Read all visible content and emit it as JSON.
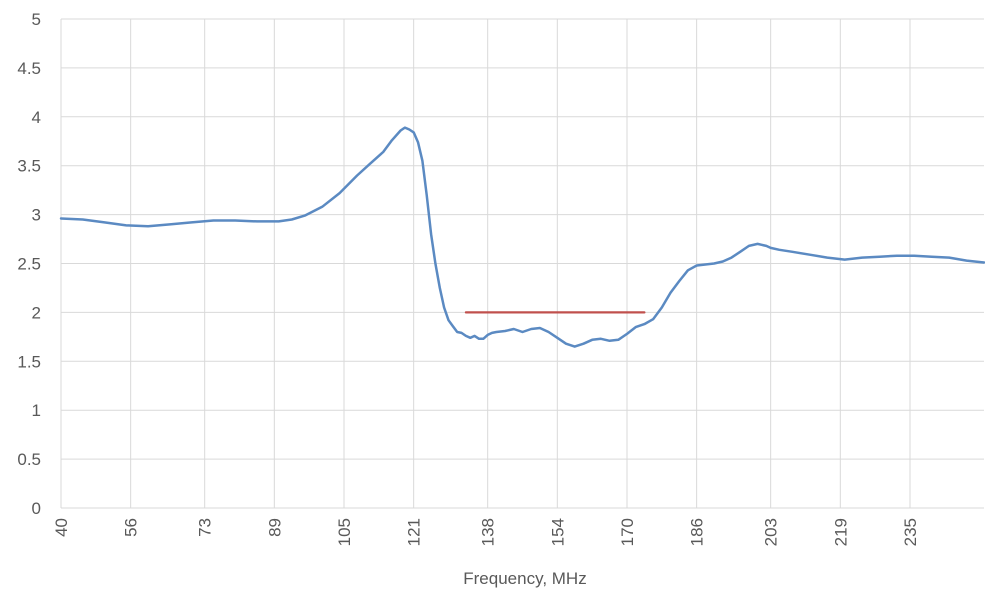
{
  "chart_data": {
    "type": "line",
    "xlabel": "Frequency, MHz",
    "ylabel": "",
    "xlim": [
      40,
      252
    ],
    "ylim": [
      0,
      5
    ],
    "grid": true,
    "y_ticks": [
      "0",
      "0.5",
      "1",
      "1.5",
      "2",
      "2.5",
      "3",
      "3.5",
      "4",
      "4.5",
      "5"
    ],
    "x_ticks": [
      {
        "v": 40,
        "label": "40"
      },
      {
        "v": 56,
        "label": "56"
      },
      {
        "v": 73,
        "label": "73"
      },
      {
        "v": 89,
        "label": "89"
      },
      {
        "v": 105,
        "label": "105"
      },
      {
        "v": 121,
        "label": "121"
      },
      {
        "v": 138,
        "label": "138"
      },
      {
        "v": 154,
        "label": "154"
      },
      {
        "v": 170,
        "label": "170"
      },
      {
        "v": 186,
        "label": "186"
      },
      {
        "v": 203,
        "label": "203"
      },
      {
        "v": 219,
        "label": "219"
      },
      {
        "v": 235,
        "label": "235"
      }
    ],
    "series": [
      {
        "color": "#5b8ac2",
        "x": [
          40,
          45,
          50,
          55,
          60,
          65,
          70,
          75,
          80,
          85,
          90,
          93,
          96,
          100,
          104,
          108,
          111,
          114,
          116,
          118,
          119,
          120,
          121,
          122,
          123,
          124,
          125,
          126,
          127,
          128,
          129,
          130,
          131,
          132,
          133,
          134,
          135,
          136,
          137,
          138,
          139,
          140,
          142,
          144,
          146,
          148,
          150,
          152,
          154,
          156,
          158,
          160,
          162,
          164,
          166,
          168,
          170,
          172,
          174,
          176,
          178,
          180,
          182,
          184,
          186,
          188,
          190,
          192,
          194,
          196,
          198,
          200,
          202,
          203,
          205,
          208,
          212,
          216,
          220,
          224,
          228,
          232,
          236,
          240,
          244,
          248,
          252
        ],
        "y": [
          2.96,
          2.95,
          2.92,
          2.89,
          2.88,
          2.9,
          2.92,
          2.94,
          2.94,
          2.93,
          2.93,
          2.95,
          2.99,
          3.08,
          3.22,
          3.4,
          3.52,
          3.64,
          3.76,
          3.86,
          3.89,
          3.87,
          3.84,
          3.74,
          3.55,
          3.2,
          2.8,
          2.5,
          2.25,
          2.05,
          1.92,
          1.86,
          1.8,
          1.79,
          1.76,
          1.74,
          1.76,
          1.73,
          1.73,
          1.77,
          1.79,
          1.8,
          1.81,
          1.83,
          1.8,
          1.83,
          1.84,
          1.8,
          1.74,
          1.68,
          1.65,
          1.68,
          1.72,
          1.73,
          1.71,
          1.72,
          1.78,
          1.85,
          1.88,
          1.93,
          2.05,
          2.2,
          2.32,
          2.43,
          2.48,
          2.49,
          2.5,
          2.52,
          2.56,
          2.62,
          2.68,
          2.7,
          2.68,
          2.66,
          2.64,
          2.62,
          2.59,
          2.56,
          2.54,
          2.56,
          2.57,
          2.58,
          2.58,
          2.57,
          2.56,
          2.53,
          2.51
        ]
      },
      {
        "color": "#c0504d",
        "x": [
          133,
          174
        ],
        "y": [
          2.0,
          2.0
        ]
      }
    ]
  }
}
